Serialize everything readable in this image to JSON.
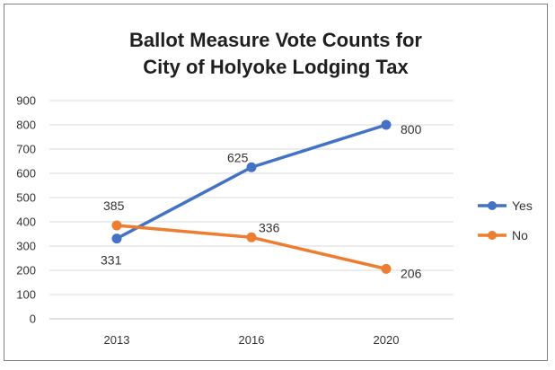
{
  "chart_data": {
    "type": "line",
    "title_line1": "Ballot Measure Vote Counts for",
    "title_line2": "City of Holyoke Lodging Tax",
    "categories": [
      "2013",
      "2016",
      "2020"
    ],
    "ylim": [
      0,
      900
    ],
    "yticks": [
      "0",
      "100",
      "200",
      "300",
      "400",
      "500",
      "600",
      "700",
      "800",
      "900"
    ],
    "grid": true,
    "legend_position": "right",
    "series": [
      {
        "name": "Yes",
        "values": [
          331,
          625,
          800
        ],
        "color": "#4472c4",
        "labels": [
          "331",
          "625",
          "800"
        ]
      },
      {
        "name": "No",
        "values": [
          385,
          336,
          206
        ],
        "color": "#ed7d31",
        "labels": [
          "385",
          "336",
          "206"
        ]
      }
    ]
  }
}
